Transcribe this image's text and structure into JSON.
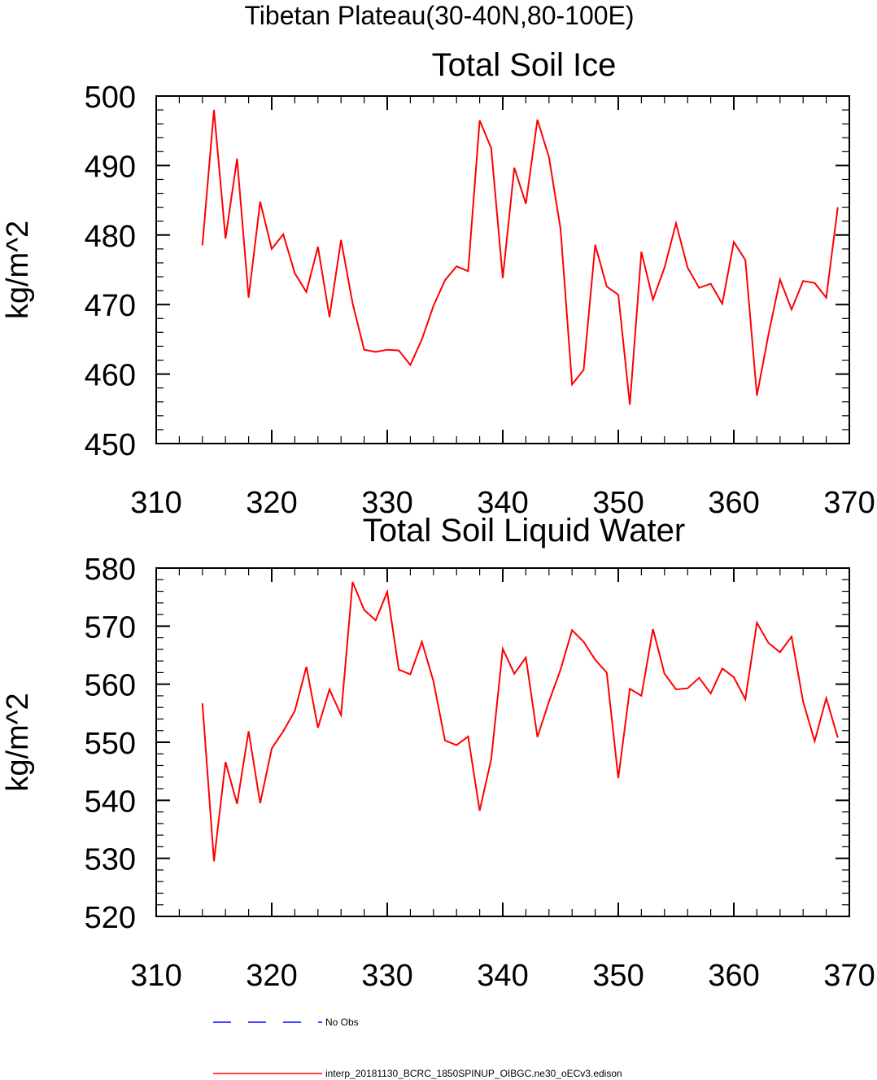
{
  "chart_data": {
    "suptitle": "Tibetan Plateau(30-40N,80-100E)",
    "panels": [
      {
        "type": "line",
        "title": "Total Soil Ice",
        "ylabel": "kg/m^2",
        "xlim": [
          310,
          370
        ],
        "ylim": [
          450,
          500
        ],
        "xticks": [
          310,
          320,
          330,
          340,
          350,
          360,
          370
        ],
        "yticks": [
          450,
          460,
          470,
          480,
          490,
          500
        ],
        "x_start": 314,
        "series": [
          {
            "name": "interp_20181130_BCRC_1850SPINUP_OIBGC.ne30_oECv3.edison",
            "color": "#ff0000",
            "values": [
              478.5,
              498.0,
              479.5,
              491.0,
              471.0,
              484.8,
              478.0,
              480.1,
              474.5,
              471.8,
              478.3,
              468.2,
              479.3,
              470.2,
              463.5,
              463.2,
              463.5,
              463.4,
              461.3,
              465.0,
              469.8,
              473.5,
              475.5,
              474.8,
              496.5,
              492.5,
              473.8,
              489.7,
              484.5,
              496.6,
              491.2,
              480.9,
              458.5,
              460.6,
              478.6,
              472.6,
              471.4,
              455.6,
              477.6,
              470.7,
              475.3,
              481.7,
              475.3,
              472.4,
              473.0,
              470.1,
              479.0,
              476.4,
              456.9,
              465.7,
              473.6,
              469.3,
              473.4,
              473.1,
              471.0,
              484.0
            ]
          }
        ]
      },
      {
        "type": "line",
        "title": "Total Soil Liquid Water",
        "ylabel": "kg/m^2",
        "xlim": [
          310,
          370
        ],
        "ylim": [
          520,
          580
        ],
        "xticks": [
          310,
          320,
          330,
          340,
          350,
          360,
          370
        ],
        "yticks": [
          520,
          530,
          540,
          550,
          560,
          570,
          580
        ],
        "x_start": 314,
        "series": [
          {
            "name": "interp_20181130_BCRC_1850SPINUP_OIBGC.ne30_oECv3.edison",
            "color": "#ff0000",
            "values": [
              556.7,
              529.5,
              546.6,
              539.4,
              551.9,
              539.5,
              548.9,
              551.9,
              555.4,
              563.0,
              552.5,
              559.1,
              554.7,
              577.6,
              572.8,
              571.0,
              575.9,
              562.5,
              561.7,
              567.3,
              560.5,
              550.3,
              549.5,
              551.0,
              538.2,
              547.1,
              566.1,
              561.8,
              564.6,
              550.9,
              557.0,
              562.5,
              569.3,
              567.3,
              564.2,
              562.0,
              543.8,
              559.2,
              558.0,
              569.5,
              561.8,
              559.1,
              559.3,
              561.1,
              558.4,
              562.7,
              561.2,
              557.4,
              570.6,
              567.1,
              565.5,
              568.2,
              557.0,
              550.2,
              557.6,
              550.8
            ]
          }
        ]
      }
    ],
    "legend": [
      {
        "label": "No Obs",
        "color": "#0000ff",
        "style": "dashed"
      },
      {
        "label": "interp_20181130_BCRC_1850SPINUP_OIBGC.ne30_oECv3.edison",
        "color": "#ff0000",
        "style": "solid"
      }
    ]
  }
}
